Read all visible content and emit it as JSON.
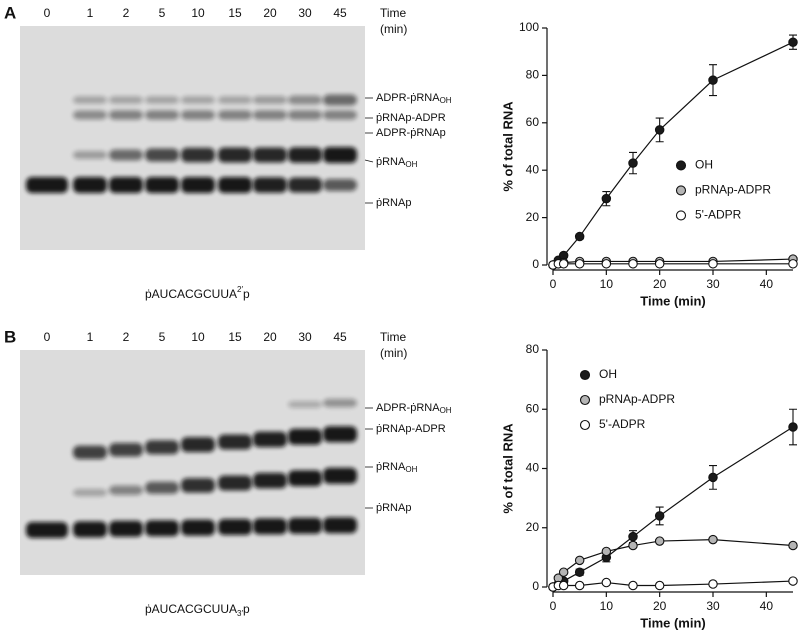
{
  "panels": [
    "A",
    "B"
  ],
  "gels": [
    {
      "lanes": [
        0,
        1,
        2,
        5,
        10,
        15,
        20,
        30,
        45
      ],
      "time_label": "Time",
      "time_unit": "(min)",
      "bands": [
        {
          "text": "ADPR-ṗRNA",
          "sub": "OH"
        },
        {
          "text": "ṗRNAp-ADPR"
        },
        {
          "text": "ADPR-ṗRNAp"
        },
        {
          "text": "ṗRNA",
          "sub": "OH"
        },
        {
          "text": "ṗRNAp"
        }
      ],
      "substrate": {
        "text": "ṗAUCACGCUUA",
        "sup": "2′",
        "tail": "p"
      }
    },
    {
      "lanes": [
        0,
        1,
        2,
        5,
        10,
        15,
        20,
        30,
        45
      ],
      "time_label": "Time",
      "time_unit": "(min)",
      "bands": [
        {
          "text": "ADPR-ṗRNA",
          "sub": "OH"
        },
        {
          "text": "ṗRNAp-ADPR"
        },
        {
          "text": "ṗRNA",
          "sub": "OH"
        },
        {
          "text": "ṗRNAp"
        }
      ],
      "substrate": {
        "text": "ṗAUCACGCUUA",
        "sub": "3′",
        "tail": "p"
      }
    }
  ],
  "chart_data": [
    {
      "type": "line",
      "x_label": "Time (min)",
      "y_label": "% of total RNA",
      "x": [
        0,
        1,
        2,
        5,
        10,
        15,
        20,
        30,
        45
      ],
      "xlim": [
        0,
        45
      ],
      "xticks": [
        0,
        10,
        20,
        30,
        40
      ],
      "ylim": [
        0,
        100
      ],
      "yticks": [
        0,
        20,
        40,
        60,
        80,
        100
      ],
      "legend": "center right",
      "series": [
        {
          "name": "OH",
          "color": "#1a1a1a",
          "values": [
            0,
            2,
            4,
            12,
            28,
            43,
            57,
            78,
            94
          ],
          "errors": [
            0,
            0.5,
            0.5,
            1,
            3,
            4.5,
            5,
            6.5,
            3
          ]
        },
        {
          "name": "pRNAp-ADPR",
          "color": "#b5b5b5",
          "values": [
            0,
            0.5,
            1,
            1.5,
            1.5,
            1.5,
            1.5,
            1.5,
            2.5
          ],
          "errors": [
            0,
            0,
            0,
            0,
            0,
            0,
            0,
            0,
            0
          ]
        },
        {
          "name": "5'-ADPR",
          "color": "#ffffff",
          "values": [
            0,
            0.5,
            0.5,
            0.5,
            0.5,
            0.5,
            0.5,
            0.5,
            0.5
          ],
          "errors": [
            0,
            0,
            0,
            0,
            0,
            0,
            0,
            0,
            0
          ]
        }
      ]
    },
    {
      "type": "line",
      "x_label": "Time (min)",
      "y_label": "% of total RNA",
      "x": [
        0,
        1,
        2,
        5,
        10,
        15,
        20,
        30,
        45
      ],
      "xlim": [
        0,
        45
      ],
      "xticks": [
        0,
        10,
        20,
        30,
        40
      ],
      "ylim": [
        0,
        80
      ],
      "yticks": [
        0,
        20,
        40,
        60,
        80
      ],
      "legend": "upper left",
      "series": [
        {
          "name": "OH",
          "color": "#1a1a1a",
          "values": [
            0,
            1,
            2,
            5,
            10,
            17,
            24,
            37,
            54
          ],
          "errors": [
            0,
            0.5,
            0.5,
            1,
            1.5,
            2,
            3,
            4,
            6
          ]
        },
        {
          "name": "pRNAp-ADPR",
          "color": "#b5b5b5",
          "values": [
            0,
            3,
            5,
            9,
            12,
            14,
            15.5,
            16,
            14
          ],
          "errors": [
            0,
            0,
            0,
            0,
            0.5,
            0.5,
            0.5,
            0.5,
            0.5
          ]
        },
        {
          "name": "5'-ADPR",
          "color": "#ffffff",
          "values": [
            0,
            0.5,
            0.5,
            0.5,
            1.5,
            0.5,
            0.5,
            1,
            2
          ],
          "errors": [
            0,
            0,
            0,
            0,
            0,
            0,
            0,
            0,
            0
          ]
        }
      ]
    }
  ]
}
